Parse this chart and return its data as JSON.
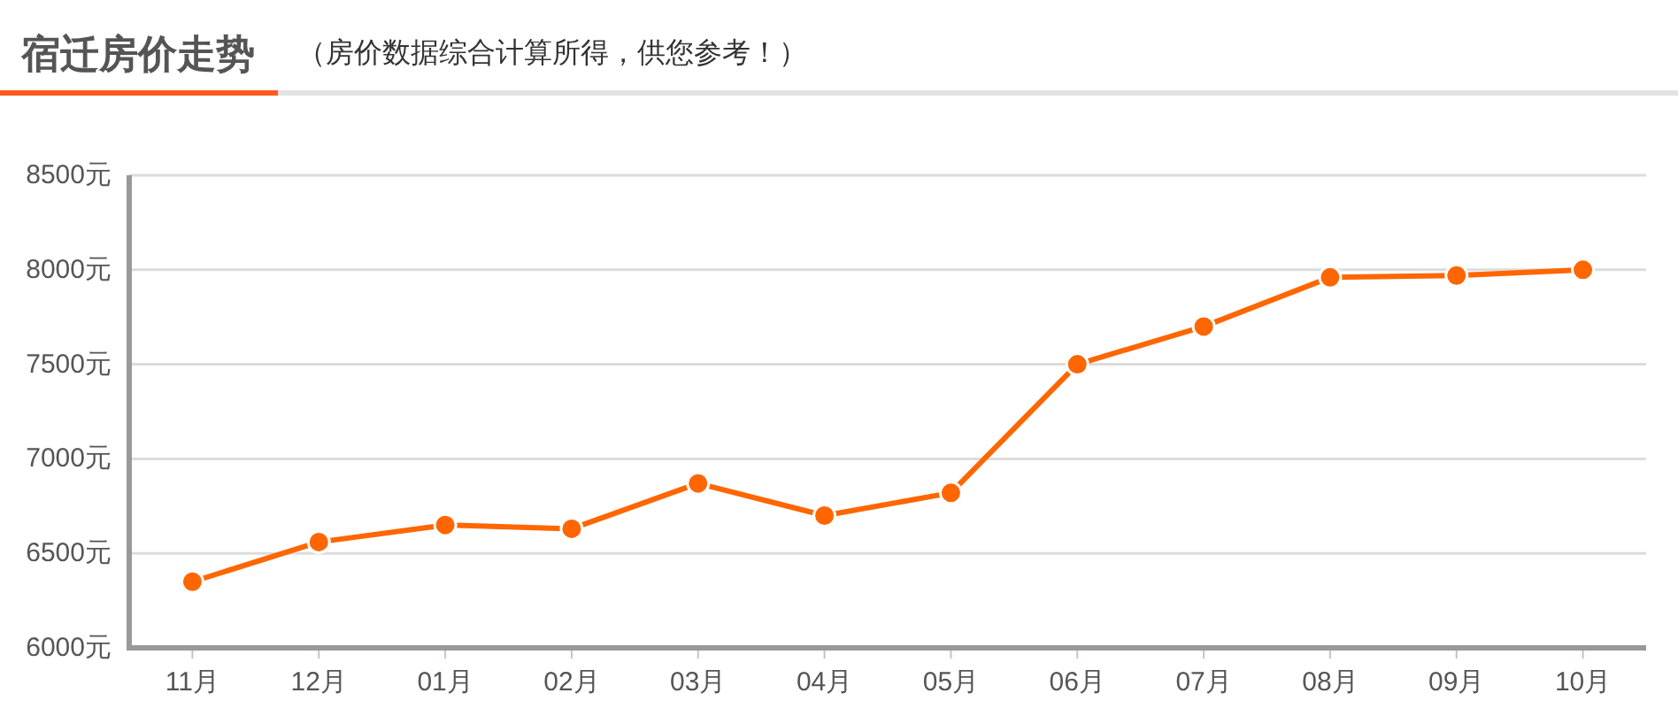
{
  "chart_data": {
    "type": "line",
    "title": "宿迁房价走势",
    "subtitle": "（房价数据综合计算所得，供您参考！）",
    "categories": [
      "11月",
      "12月",
      "01月",
      "02月",
      "03月",
      "04月",
      "05月",
      "06月",
      "07月",
      "08月",
      "09月",
      "10月"
    ],
    "series": [
      {
        "color": "#ff6600",
        "values": [
          6350,
          6560,
          6650,
          6630,
          6870,
          6700,
          6820,
          7500,
          7700,
          7960,
          7970,
          8000
        ]
      }
    ],
    "ylim": [
      6000,
      8500
    ],
    "yticks": [
      {
        "value": 6000,
        "label": "6000元"
      },
      {
        "value": 6500,
        "label": "6500元"
      },
      {
        "value": 7000,
        "label": "7000元"
      },
      {
        "value": 7500,
        "label": "7500元"
      },
      {
        "value": 8000,
        "label": "8000元"
      },
      {
        "value": 8500,
        "label": "8500元"
      }
    ],
    "grid": "y",
    "marker": "circle",
    "line_style": "solid"
  }
}
